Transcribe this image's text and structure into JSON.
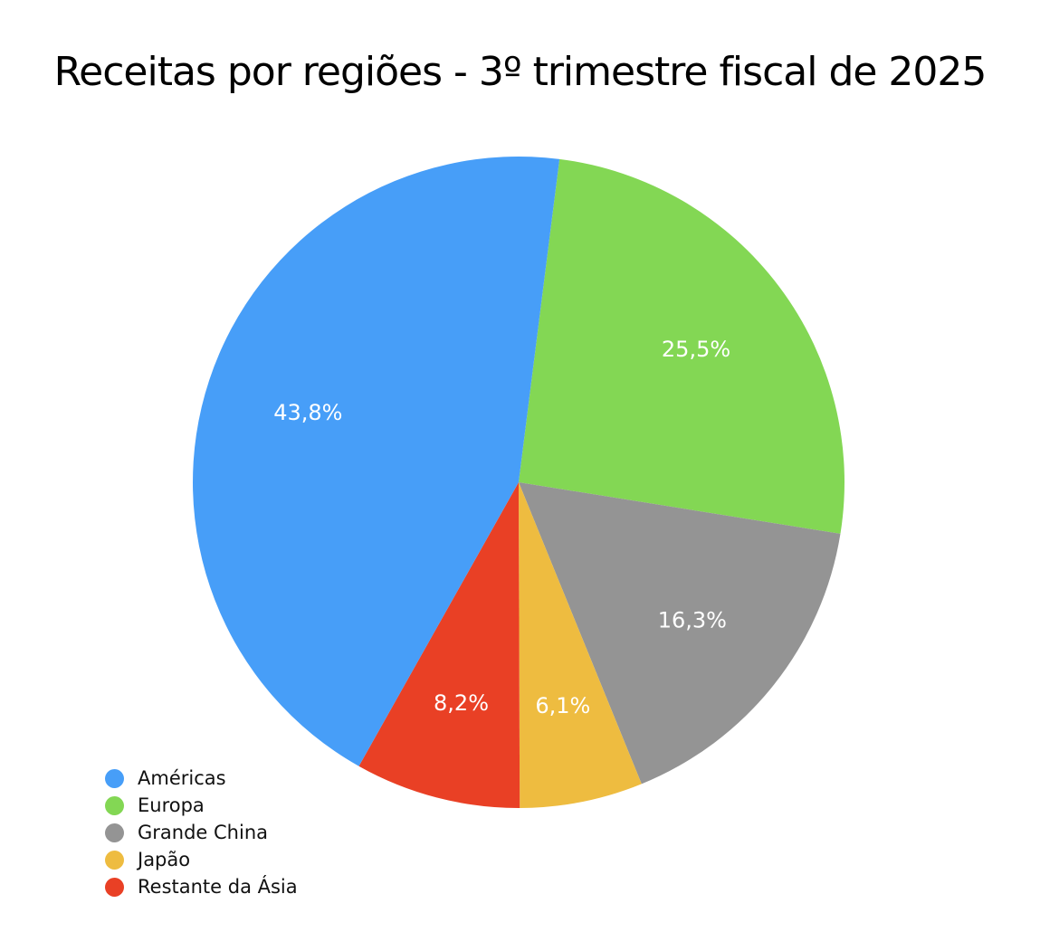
{
  "chart_data": {
    "type": "pie",
    "title": "Receitas por regiões - 3º trimestre fiscal de 2025",
    "slices": [
      {
        "name": "Américas",
        "value": 43.8,
        "label": "43,8%",
        "color": "#479ef8"
      },
      {
        "name": "Europa",
        "value": 25.5,
        "label": "25,5%",
        "color": "#83d754"
      },
      {
        "name": "Grande China",
        "value": 16.3,
        "label": "16,3%",
        "color": "#949494"
      },
      {
        "name": "Japão",
        "value": 6.1,
        "label": "6,1%",
        "color": "#eebc40"
      },
      {
        "name": "Restante da Ásia",
        "value": 8.2,
        "label": "8,2%",
        "color": "#e94025"
      }
    ],
    "legend_position": "bottom-left"
  }
}
